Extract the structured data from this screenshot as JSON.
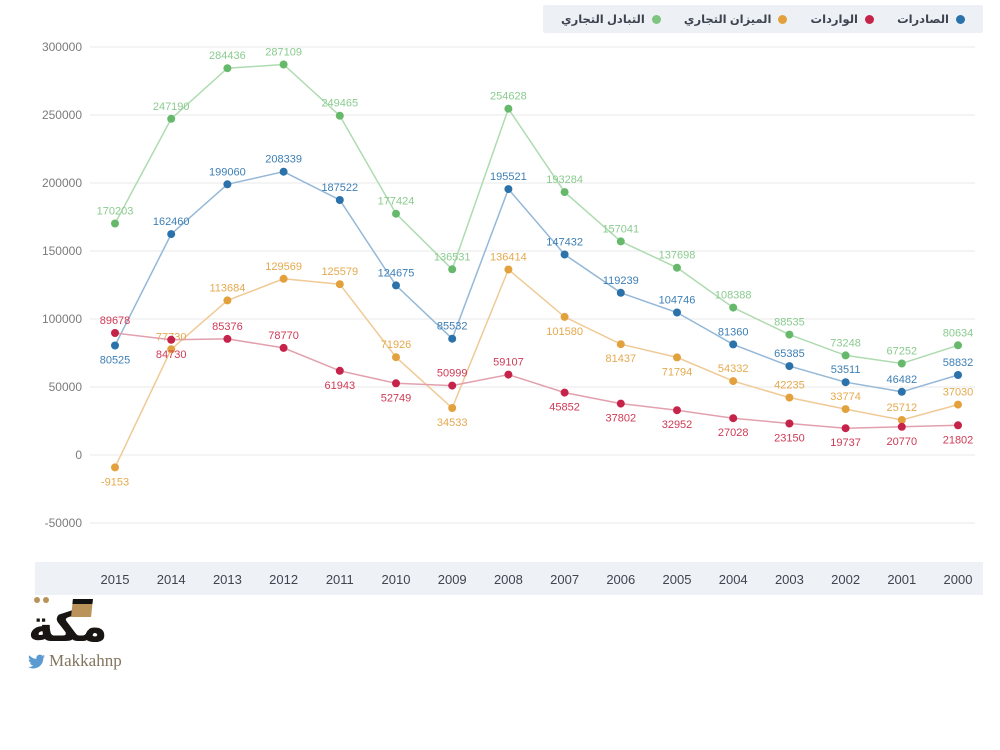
{
  "legend": {
    "bg": "#edf0f5",
    "items": [
      {
        "key": "exports",
        "label": "الصادرات",
        "color": "#2b72ab"
      },
      {
        "key": "imports",
        "label": "الواردات",
        "color": "#c52349"
      },
      {
        "key": "balance",
        "label": "الميزان التجاري",
        "color": "#e3a13e"
      },
      {
        "key": "exchange",
        "label": "التبادل التجاري",
        "color": "#7cc47f"
      }
    ]
  },
  "chart_data": {
    "type": "line",
    "x": [
      "2015",
      "2014",
      "2013",
      "2012",
      "2011",
      "2010",
      "2009",
      "2008",
      "2007",
      "2006",
      "2005",
      "2004",
      "2003",
      "2002",
      "2001",
      "2000"
    ],
    "series": [
      {
        "key": "exchange",
        "name": "التبادل التجاري",
        "color": "#66b96b",
        "line_color": "#aedbb0",
        "label_color": "#8acb8f",
        "values": [
          170203,
          247190,
          284436,
          287109,
          249465,
          177424,
          136531,
          254628,
          193284,
          157041,
          137698,
          108388,
          88535,
          73248,
          67252,
          80634
        ],
        "below_label_indices": []
      },
      {
        "key": "exports",
        "name": "الصادرات",
        "color": "#2b72ab",
        "line_color": "#94b8d8",
        "label_color": "#3d7fb5",
        "values": [
          80525,
          162460,
          199060,
          208339,
          187522,
          124675,
          85532,
          195521,
          147432,
          119239,
          104746,
          81360,
          65385,
          53511,
          46482,
          58832
        ],
        "below_label_indices": [
          0
        ]
      },
      {
        "key": "balance",
        "name": "الميزان التجاري",
        "color": "#e3a13e",
        "line_color": "#efca96",
        "label_color": "#e5a94e",
        "values": [
          -9153,
          77730,
          113684,
          129569,
          125579,
          71926,
          34533,
          136414,
          101580,
          81437,
          71794,
          54332,
          42235,
          33774,
          25712,
          37030
        ],
        "below_label_indices": [
          0,
          6,
          8,
          9,
          10
        ]
      },
      {
        "key": "imports",
        "name": "الواردات",
        "color": "#c52349",
        "line_color": "#e2a0ad",
        "label_color": "#cf3a55",
        "values": [
          89678,
          84730,
          85376,
          78770,
          61943,
          52749,
          50999,
          59107,
          45852,
          37802,
          32952,
          27028,
          23150,
          19737,
          20770,
          21802
        ],
        "below_label_indices": [
          1,
          4,
          5,
          8,
          9,
          10,
          11,
          12,
          13,
          14,
          15
        ]
      }
    ],
    "y_ticks": [
      300000,
      250000,
      200000,
      150000,
      100000,
      50000,
      0,
      -50000
    ],
    "ylim": [
      -50000,
      300000
    ],
    "grid": true,
    "grid_color": "#e8e8e8",
    "tick_color": "#7b7b7b",
    "year_label_color": "#3f4550",
    "x_axis_band_bg": "#eef1f5",
    "legend_position": "top-right"
  },
  "footer": {
    "logo_text": "مكة",
    "twitter_handle": "Makkahnp",
    "twitter_color": "#5b9bd1"
  }
}
